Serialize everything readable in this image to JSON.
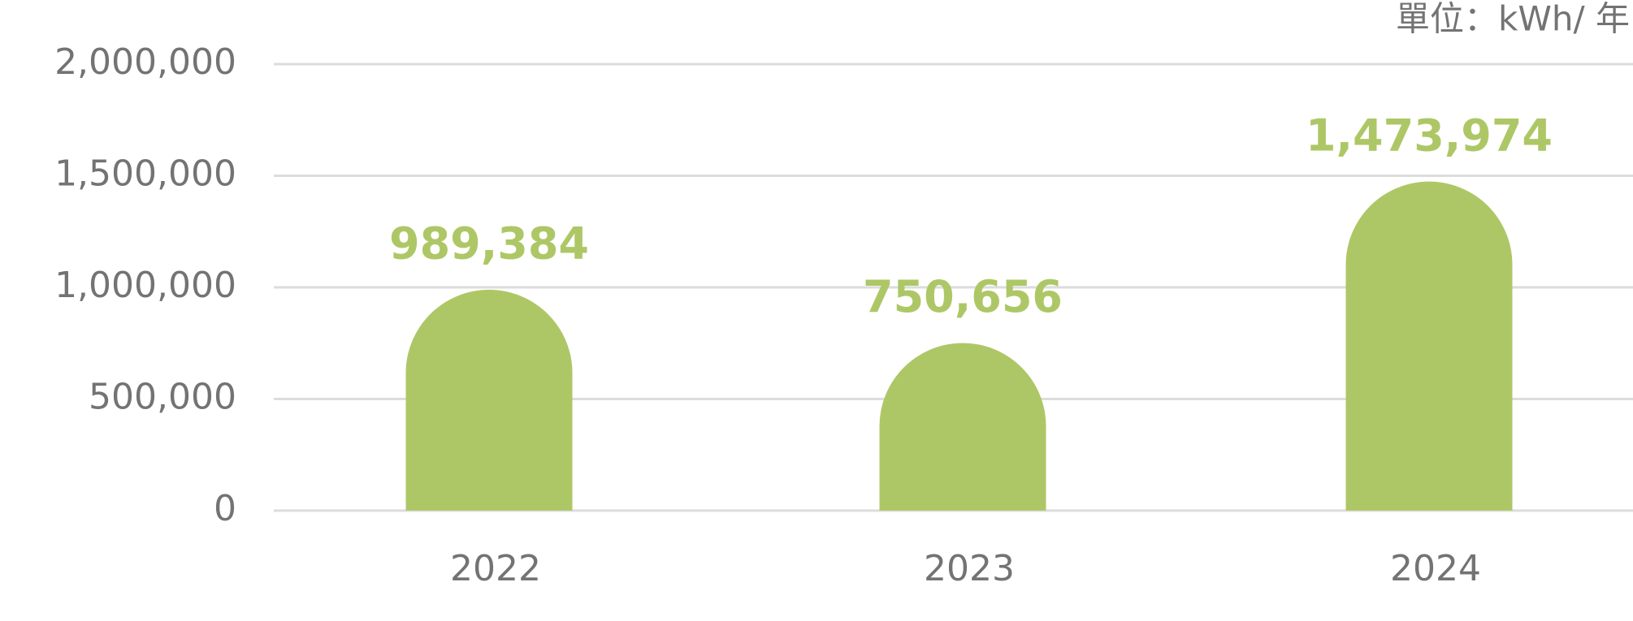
{
  "chart_data": {
    "type": "bar",
    "unit": "單位：kWh/ 年",
    "categories": [
      "2022",
      "2023",
      "2024"
    ],
    "values": [
      989384,
      750656,
      1473974
    ],
    "value_labels": [
      "989,384",
      "750,656",
      "1,473,974"
    ],
    "color": "#aec766",
    "ylim": [
      0,
      2000000
    ],
    "yticks": [
      0,
      {
        "value": 500000,
        "label": "500,000"
      },
      {
        "value": 1000000,
        "label": "1,000,000"
      },
      {
        "value": 1500000,
        "label": "1,500,000"
      },
      {
        "value": 2000000,
        "label": "2,000,000"
      }
    ],
    "grid": true
  }
}
